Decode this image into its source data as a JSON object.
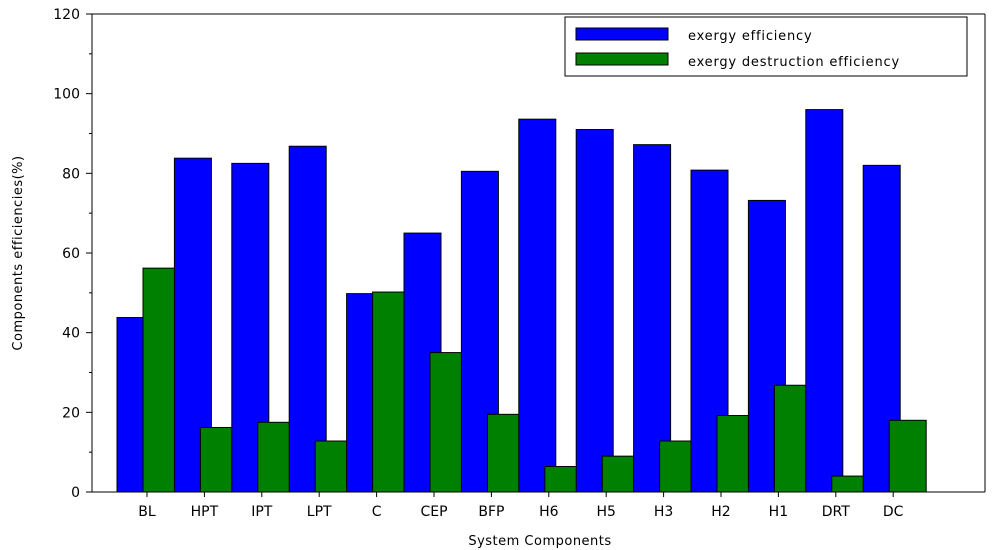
{
  "chart_data": {
    "type": "bar",
    "xlabel": "System Components",
    "ylabel": "Components efficiencies(%)",
    "ylim": [
      0,
      120
    ],
    "yticks": [
      0,
      20,
      40,
      60,
      80,
      100,
      120
    ],
    "grid": false,
    "legend_position": "top-right",
    "categories": [
      "BL",
      "HPT",
      "IPT",
      "LPT",
      "C",
      "CEP",
      "BFP",
      "H6",
      "H5",
      "H3",
      "H2",
      "H1",
      "DRT",
      "DC"
    ],
    "series": [
      {
        "name": "exergy efficiency",
        "color": "#0000ff",
        "values": [
          43.8,
          83.8,
          82.5,
          86.8,
          49.8,
          65.0,
          80.5,
          93.6,
          91.0,
          87.2,
          80.8,
          73.2,
          96.0,
          82.0
        ]
      },
      {
        "name": "exergy destruction efficiency",
        "color": "#008000",
        "values": [
          56.2,
          16.2,
          17.5,
          12.8,
          50.2,
          35.0,
          19.5,
          6.4,
          9.0,
          12.8,
          19.2,
          26.8,
          4.0,
          18.0
        ]
      }
    ]
  }
}
